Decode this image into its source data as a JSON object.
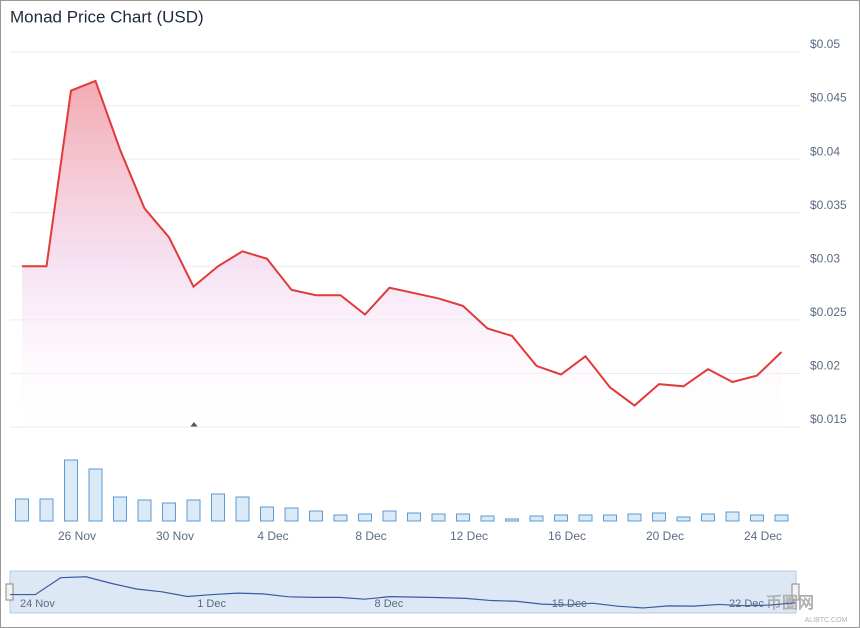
{
  "chart_data": {
    "type": "line",
    "title": "Monad Price Chart (USD)",
    "categories": [
      null,
      null,
      "26 Nov",
      null,
      null,
      null,
      "30 Nov",
      null,
      null,
      null,
      "4 Dec",
      null,
      null,
      null,
      "8 Dec",
      null,
      null,
      null,
      "12 Dec",
      null,
      null,
      null,
      "16 Dec",
      null,
      null,
      null,
      "20 Dec",
      null,
      null,
      null,
      "24 Dec",
      null
    ],
    "values": [
      0.03,
      0.03,
      0.0464,
      0.0473,
      0.0409,
      0.0354,
      0.0327,
      0.0281,
      0.03,
      0.0314,
      0.0307,
      0.0278,
      0.0273,
      0.0273,
      0.0255,
      0.028,
      0.0275,
      0.027,
      0.0263,
      0.0242,
      0.0235,
      0.0207,
      0.0199,
      0.0216,
      0.0187,
      0.017,
      0.019,
      0.0188,
      0.0204,
      0.0192,
      0.0198,
      0.022
    ],
    "color": "#e03a3a",
    "volume": [
      22,
      22,
      61,
      52,
      24,
      21,
      18,
      21,
      27,
      24,
      14,
      13,
      10,
      6,
      7,
      10,
      8,
      7,
      7,
      5,
      2,
      5,
      6,
      6,
      6,
      7,
      8,
      4,
      7,
      9,
      6,
      6
    ],
    "volume_color": "#5b9bd5",
    "ylim": [
      0.015,
      0.05
    ],
    "yticks": [
      {
        "value": 0.015,
        "label": "$0.015"
      },
      {
        "value": 0.02,
        "label": "$0.02"
      },
      {
        "value": 0.025,
        "label": "$0.025"
      },
      {
        "value": 0.03,
        "label": "$0.03"
      },
      {
        "value": 0.035,
        "label": "$0.035"
      },
      {
        "value": 0.04,
        "label": "$0.04"
      },
      {
        "value": 0.045,
        "label": "$0.045"
      },
      {
        "value": 0.05,
        "label": "$0.05"
      }
    ],
    "grid": true,
    "navigator_labels": [
      "24 Nov",
      "1 Dec",
      "8 Dec",
      "15 Dec",
      "22 Dec"
    ],
    "watermark": "币圈网",
    "watermark_url": "ALIBTC.COM"
  }
}
